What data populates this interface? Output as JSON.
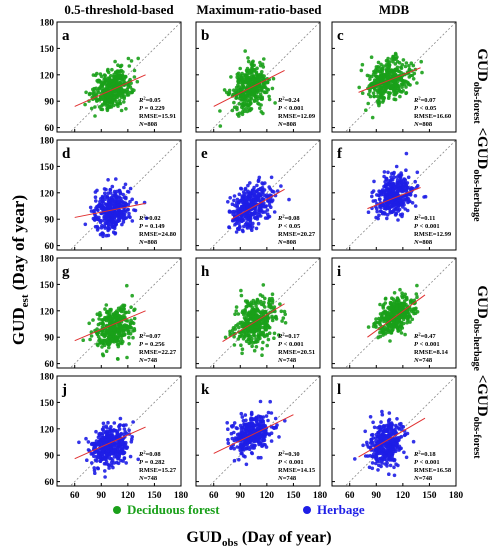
{
  "column_titles": [
    "0.5-threshold-based",
    "Maximum-ratio-based",
    "MDB"
  ],
  "row_group_labels": [
    {
      "main": "GUD",
      "sub1": "obs-forest",
      "mid": " <GUD",
      "sub2": "obs-herbage"
    },
    {
      "main": "GUD",
      "sub1": "obs-herbage",
      "mid": " <GUD",
      "sub2": "obs-forest"
    }
  ],
  "y_axis_label": {
    "main": "GUD",
    "sub": "est",
    "rest": " (Day of year)"
  },
  "x_axis_label": {
    "main": "GUD",
    "sub": "obs",
    "rest": " (Day of year)"
  },
  "legend": [
    {
      "label": "Deciduous forest",
      "color": "#1aa01a"
    },
    {
      "label": "Herbage",
      "color": "#1e1ee6"
    }
  ],
  "colors": {
    "forest": "#1aa01a",
    "herbage": "#1e1ee6",
    "fit_line": "#e03030",
    "one_to_one": "#888888"
  },
  "chart_data": {
    "type": "scatter",
    "grid": false,
    "xlim": [
      40,
      180
    ],
    "ylim": [
      55,
      180
    ],
    "x_ticks": [
      60,
      90,
      120,
      150,
      180
    ],
    "y_ticks": [
      60,
      90,
      120,
      150,
      180
    ],
    "panels": [
      {
        "letter": "a",
        "series": "forest",
        "center": [
          102,
          104
        ],
        "spread": [
          11,
          11
        ],
        "r2": "0.05",
        "p": "0.229",
        "rmse": "15.91",
        "n": "808",
        "fit": [
          [
            60,
            84
          ],
          [
            140,
            120
          ]
        ]
      },
      {
        "letter": "b",
        "series": "forest",
        "center": [
          100,
          104
        ],
        "spread": [
          10,
          12
        ],
        "r2": "0.24",
        "p": "< 0.001",
        "rmse": "12.09",
        "n": "808",
        "fit": [
          [
            60,
            84
          ],
          [
            140,
            125
          ]
        ]
      },
      {
        "letter": "c",
        "series": "forest",
        "center": [
          104,
          114
        ],
        "spread": [
          12,
          11
        ],
        "r2": "0.07",
        "p": "< 0.05",
        "rmse": "16.60",
        "n": "808",
        "fit": [
          [
            70,
            100
          ],
          [
            140,
            128
          ]
        ]
      },
      {
        "letter": "d",
        "series": "herbage",
        "center": [
          102,
          100
        ],
        "spread": [
          11,
          12
        ],
        "r2": "0.02",
        "p": "0.149",
        "rmse": "24.80",
        "n": "808",
        "fit": [
          [
            60,
            92
          ],
          [
            140,
            108
          ]
        ]
      },
      {
        "letter": "e",
        "series": "herbage",
        "center": [
          102,
          104
        ],
        "spread": [
          11,
          12
        ],
        "r2": "0.08",
        "p": "< 0.05",
        "rmse": "20.27",
        "n": "808",
        "fit": [
          [
            80,
            90
          ],
          [
            140,
            124
          ]
        ]
      },
      {
        "letter": "f",
        "series": "herbage",
        "center": [
          110,
          117
        ],
        "spread": [
          11,
          11
        ],
        "r2": "0.11",
        "p": "< 0.001",
        "rmse": "12.99",
        "n": "808",
        "fit": [
          [
            80,
            102
          ],
          [
            140,
            126
          ]
        ]
      },
      {
        "letter": "g",
        "series": "forest",
        "center": [
          104,
          100
        ],
        "spread": [
          10,
          12
        ],
        "r2": "0.07",
        "p": "0.256",
        "rmse": "22.27",
        "n": "748",
        "fit": [
          [
            60,
            86
          ],
          [
            140,
            120
          ]
        ]
      },
      {
        "letter": "h",
        "series": "forest",
        "center": [
          108,
          108
        ],
        "spread": [
          11,
          13
        ],
        "r2": "0.17",
        "p": "< 0.001",
        "rmse": "20.51",
        "n": "748",
        "fit": [
          [
            70,
            85
          ],
          [
            140,
            128
          ]
        ]
      },
      {
        "letter": "i",
        "series": "forest",
        "center": [
          112,
          114
        ],
        "spread": [
          10,
          10
        ],
        "r2": "0.47",
        "p": "< 0.001",
        "rmse": "8.14",
        "n": "748",
        "fit": [
          [
            80,
            90
          ],
          [
            145,
            138
          ]
        ]
      },
      {
        "letter": "j",
        "series": "herbage",
        "center": [
          100,
          100
        ],
        "spread": [
          11,
          11
        ],
        "r2": "0.08",
        "p": "0.282",
        "rmse": "15.27",
        "n": "748",
        "fit": [
          [
            60,
            86
          ],
          [
            140,
            122
          ]
        ]
      },
      {
        "letter": "k",
        "series": "herbage",
        "center": [
          102,
          114
        ],
        "spread": [
          11,
          10
        ],
        "r2": "0.30",
        "p": "< 0.001",
        "rmse": "14.15",
        "n": "748",
        "fit": [
          [
            60,
            92
          ],
          [
            150,
            136
          ]
        ]
      },
      {
        "letter": "l",
        "series": "herbage",
        "center": [
          102,
          104
        ],
        "spread": [
          10,
          13
        ],
        "r2": "0.18",
        "p": "< 0.001",
        "rmse": "16.58",
        "n": "748",
        "fit": [
          [
            70,
            88
          ],
          [
            145,
            132
          ]
        ]
      }
    ]
  }
}
